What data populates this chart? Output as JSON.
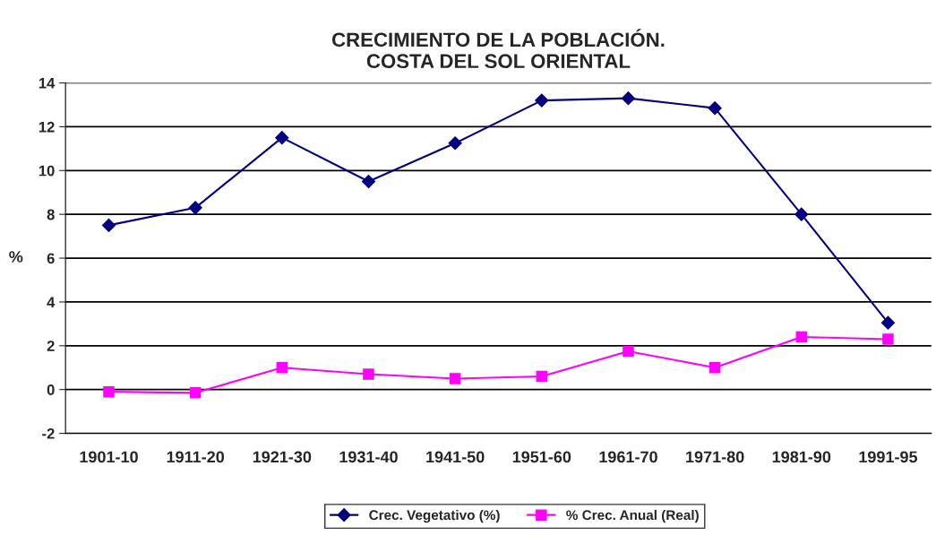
{
  "chart_data": {
    "type": "line",
    "title": "CRECIMIENTO DE LA POBLACIÓN.\nCOSTA DEL SOL ORIENTAL",
    "ylabel": "%",
    "categories": [
      "1901-10",
      "1911-20",
      "1921-30",
      "1931-40",
      "1941-50",
      "1951-60",
      "1961-70",
      "1971-80",
      "1981-90",
      "1991-95"
    ],
    "series": [
      {
        "name": "Crec. Vegetativo (%)",
        "color": "#000080",
        "marker": "diamond",
        "values": [
          7.5,
          8.3,
          11.5,
          9.5,
          11.25,
          13.2,
          13.3,
          12.85,
          8.0,
          3.05
        ]
      },
      {
        "name": "% Crec. Anual (Real)",
        "color": "#ff00ff",
        "marker": "square",
        "values": [
          -0.1,
          -0.15,
          1.0,
          0.7,
          0.5,
          0.6,
          1.75,
          1.0,
          2.4,
          2.3
        ]
      }
    ],
    "ylim": [
      -2,
      14
    ],
    "yticks": [
      -2,
      0,
      2,
      4,
      6,
      8,
      10,
      12,
      14
    ],
    "grid": "y",
    "legend": "bottom",
    "line_style": "solid"
  }
}
